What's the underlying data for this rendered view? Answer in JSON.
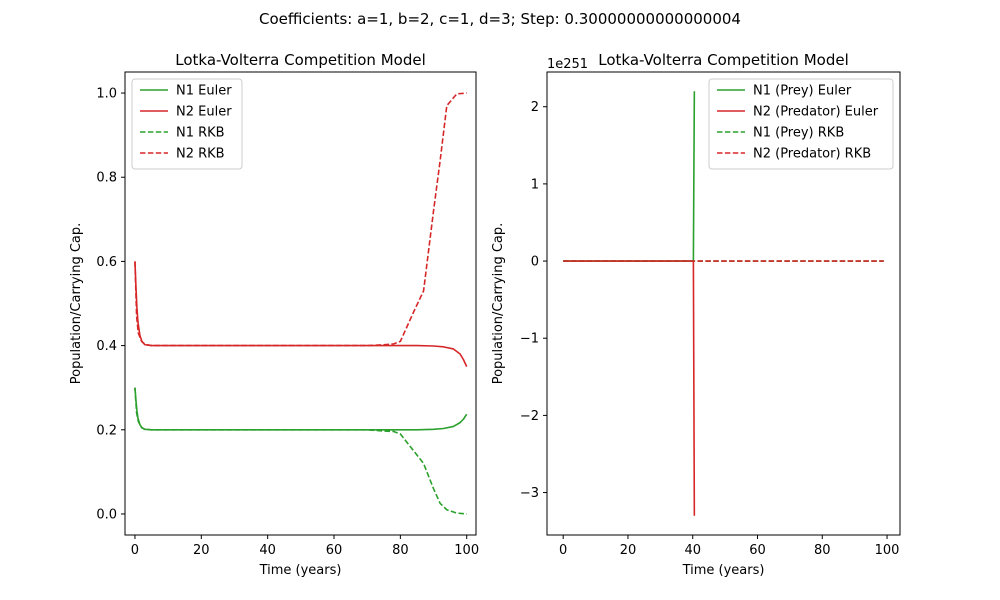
{
  "figure": {
    "suptitle": "Coefficients: a=1, b=2, c=1, d=3; Step: 0.30000000000000004"
  },
  "chart_data": [
    {
      "type": "line",
      "title": "Lotka-Volterra Competition Model",
      "xlabel": "Time (years)",
      "ylabel": "Population/Carrying Cap.",
      "xlim": [
        -3,
        102.8
      ],
      "ylim": [
        -0.05,
        1.05
      ],
      "xticks": [
        0,
        20,
        40,
        60,
        80,
        100
      ],
      "yticks": [
        0.0,
        0.2,
        0.4,
        0.6,
        0.8,
        1.0
      ],
      "ytick_labels": [
        "0.0",
        "0.2",
        "0.4",
        "0.6",
        "0.8",
        "1.0"
      ],
      "legend": "top-left",
      "series": [
        {
          "name": "N1 Euler",
          "color": "#2ca02c",
          "dash": "solid",
          "x": [
            0,
            0.3,
            0.6,
            0.9,
            1.5,
            2.1,
            3,
            5,
            10,
            40,
            70,
            80,
            85,
            90,
            93,
            96,
            98,
            99,
            100
          ],
          "y": [
            0.3,
            0.27,
            0.245,
            0.228,
            0.212,
            0.205,
            0.201,
            0.2,
            0.2,
            0.2,
            0.2,
            0.2,
            0.2,
            0.201,
            0.203,
            0.208,
            0.217,
            0.225,
            0.237
          ]
        },
        {
          "name": "N2 Euler",
          "color": "#d62728",
          "dash": "solid",
          "x": [
            0,
            0.3,
            0.6,
            0.9,
            1.5,
            2.1,
            3,
            5,
            10,
            40,
            70,
            80,
            85,
            90,
            93,
            96,
            98,
            99,
            100
          ],
          "y": [
            0.6,
            0.54,
            0.49,
            0.456,
            0.424,
            0.41,
            0.402,
            0.4,
            0.4,
            0.4,
            0.4,
            0.4,
            0.4,
            0.399,
            0.397,
            0.392,
            0.38,
            0.367,
            0.35
          ]
        },
        {
          "name": "N1 RKB",
          "color": "#2ca02c",
          "dash": "dashed",
          "x": [
            0,
            0.5,
            1,
            2,
            3,
            5,
            10,
            40,
            70,
            75,
            78,
            80,
            84,
            87,
            90,
            92,
            94,
            97,
            100
          ],
          "y": [
            0.3,
            0.24,
            0.22,
            0.205,
            0.201,
            0.2,
            0.2,
            0.2,
            0.2,
            0.197,
            0.196,
            0.19,
            0.15,
            0.12,
            0.06,
            0.025,
            0.01,
            0.002,
            0.0
          ]
        },
        {
          "name": "N2 RKB",
          "color": "#d62728",
          "dash": "dashed",
          "x": [
            0,
            0.5,
            1,
            2,
            3,
            5,
            10,
            40,
            70,
            75,
            78,
            80,
            84,
            87,
            90,
            92,
            94,
            97,
            100
          ],
          "y": [
            0.6,
            0.47,
            0.43,
            0.41,
            0.403,
            0.4,
            0.4,
            0.4,
            0.4,
            0.402,
            0.404,
            0.41,
            0.48,
            0.53,
            0.72,
            0.84,
            0.97,
            0.998,
            1.0
          ]
        }
      ]
    },
    {
      "type": "line",
      "title": "Lotka-Volterra Competition Model",
      "xlabel": "Time (years)",
      "ylabel": "Population/Carrying Cap.",
      "offset_label": "1e251",
      "xlim": [
        -5,
        104
      ],
      "ylim": [
        -3.55,
        2.45
      ],
      "xticks": [
        0,
        20,
        40,
        60,
        80,
        100
      ],
      "yticks": [
        -3,
        -2,
        -1,
        0,
        1,
        2
      ],
      "ytick_labels": [
        "−3",
        "−2",
        "−1",
        "0",
        "1",
        "2"
      ],
      "legend": "top-right",
      "series": [
        {
          "name": "N1 (Prey) Euler",
          "color": "#2ca02c",
          "dash": "solid",
          "x": [
            0,
            40.2,
            40.5
          ],
          "y": [
            0,
            0,
            2.2
          ]
        },
        {
          "name": "N2 (Predator) Euler",
          "color": "#d62728",
          "dash": "solid",
          "x": [
            0,
            40.2,
            40.5
          ],
          "y": [
            0,
            0,
            -3.3
          ]
        },
        {
          "name": "N1 (Prey) RKB",
          "color": "#2ca02c",
          "dash": "dashed",
          "x": [
            0,
            99
          ],
          "y": [
            0,
            0
          ]
        },
        {
          "name": "N2 (Predator) RKB",
          "color": "#d62728",
          "dash": "dashed",
          "x": [
            0,
            99
          ],
          "y": [
            0,
            0
          ]
        }
      ]
    }
  ]
}
